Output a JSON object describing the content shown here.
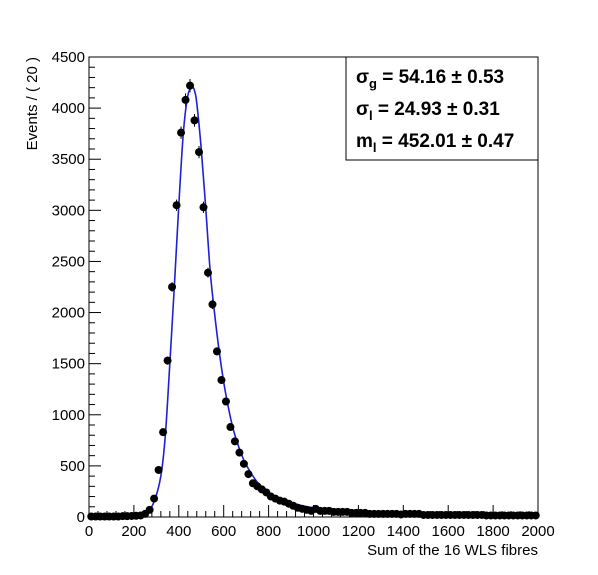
{
  "chart_data": {
    "type": "scatter",
    "xlabel": "Sum of the 16 WLS fibres",
    "ylabel": "Events / ( 20 )",
    "xlim": [
      0,
      2000
    ],
    "ylim": [
      0,
      4500
    ],
    "x_ticks": [
      "0",
      "200",
      "400",
      "600",
      "800",
      "1000",
      "1200",
      "1400",
      "1600",
      "1800",
      "2000"
    ],
    "y_ticks": [
      "0",
      "500",
      "1000",
      "1500",
      "2000",
      "2500",
      "3000",
      "3500",
      "4000",
      "4500"
    ],
    "grid": false,
    "colors": {
      "points": "#000000",
      "fit": "#1f1fd6"
    },
    "series": [
      {
        "kind": "points",
        "x": [
          10,
          30,
          50,
          70,
          90,
          110,
          130,
          150,
          170,
          190,
          210,
          230,
          250,
          270,
          290,
          310,
          330,
          350,
          370,
          390,
          410,
          430,
          450,
          470,
          490,
          510,
          530,
          550,
          570,
          590,
          610,
          630,
          650,
          670,
          690,
          710,
          730,
          750,
          770,
          790,
          810,
          830,
          850,
          870,
          890,
          910,
          930,
          950,
          970,
          990,
          1010,
          1030,
          1050,
          1070,
          1090,
          1110,
          1130,
          1150,
          1170,
          1190,
          1210,
          1230,
          1250,
          1270,
          1290,
          1310,
          1330,
          1350,
          1370,
          1390,
          1410,
          1430,
          1450,
          1470,
          1490,
          1510,
          1530,
          1550,
          1570,
          1590,
          1610,
          1630,
          1650,
          1670,
          1690,
          1710,
          1730,
          1750,
          1770,
          1790,
          1810,
          1830,
          1850,
          1870,
          1890,
          1910,
          1930,
          1950,
          1970,
          1990
        ],
        "y": [
          5,
          5,
          5,
          5,
          5,
          5,
          5,
          8,
          8,
          10,
          12,
          15,
          30,
          70,
          180,
          460,
          830,
          1530,
          2250,
          3050,
          3760,
          4080,
          4220,
          3880,
          3570,
          3030,
          2390,
          2080,
          1620,
          1340,
          1130,
          880,
          740,
          630,
          520,
          420,
          330,
          300,
          270,
          240,
          200,
          180,
          160,
          150,
          130,
          110,
          90,
          80,
          70,
          60,
          80,
          60,
          60,
          60,
          50,
          50,
          50,
          50,
          40,
          40,
          40,
          40,
          30,
          30,
          30,
          30,
          30,
          30,
          30,
          25,
          30,
          30,
          30,
          30,
          20,
          20,
          20,
          20,
          20,
          20,
          20,
          20,
          20,
          20,
          20,
          20,
          20,
          20,
          15,
          15,
          15,
          15,
          15,
          15,
          15,
          15,
          15,
          15,
          15,
          15
        ],
        "errors": [
          2,
          2,
          2,
          2,
          2,
          2,
          2,
          3,
          3,
          3,
          3,
          4,
          5,
          8,
          13,
          21,
          29,
          39,
          47,
          55,
          61,
          64,
          65,
          62,
          60,
          55,
          49,
          46,
          40,
          37,
          34,
          30,
          27,
          25,
          23,
          20,
          18,
          17,
          16,
          15,
          14,
          13,
          13,
          12,
          11,
          10,
          9,
          9,
          8,
          8,
          9,
          8,
          8,
          8,
          7,
          7,
          7,
          7,
          6,
          6,
          6,
          6,
          5,
          5,
          5,
          5,
          5,
          5,
          5,
          5,
          5,
          5,
          5,
          5,
          4,
          4,
          4,
          4,
          4,
          4,
          4,
          4,
          4,
          4,
          4,
          4,
          4,
          4,
          4,
          4,
          4,
          4,
          4,
          4,
          4,
          4,
          4,
          4,
          4,
          4
        ]
      },
      {
        "kind": "fit",
        "x": [
          0,
          100,
          200,
          230,
          260,
          290,
          320,
          340,
          360,
          380,
          400,
          420,
          440,
          460,
          470,
          480,
          500,
          520,
          540,
          560,
          580,
          600,
          620,
          640,
          660,
          680,
          700,
          750,
          800,
          850,
          900,
          1000,
          1200,
          1400,
          1600,
          1800,
          2000
        ],
        "y": [
          5,
          5,
          10,
          20,
          50,
          150,
          400,
          800,
          1500,
          2250,
          3050,
          3750,
          4120,
          4200,
          4170,
          4050,
          3600,
          3020,
          2400,
          1980,
          1620,
          1320,
          1080,
          880,
          730,
          610,
          510,
          340,
          240,
          180,
          140,
          90,
          50,
          35,
          25,
          18,
          15
        ]
      }
    ]
  },
  "stats_box": {
    "lines": [
      {
        "symbol": "σ",
        "sub": "g",
        "rest": " =  54.16 ± 0.53"
      },
      {
        "symbol": "σ",
        "sub": "l",
        "rest": " =  24.93 ± 0.31"
      },
      {
        "symbol": "m",
        "sub": "l",
        "rest": " =  452.01 ± 0.47"
      }
    ]
  }
}
